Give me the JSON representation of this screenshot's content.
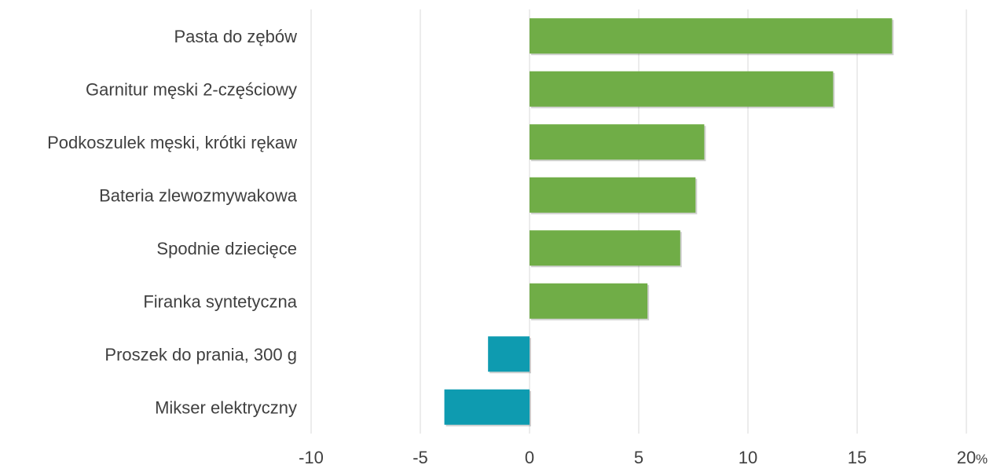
{
  "chart_data": {
    "type": "bar",
    "orientation": "horizontal",
    "categories": [
      "Pasta do zębów",
      "Garnitur męski 2-częściowy",
      "Podkoszulek męski, krótki rękaw",
      "Bateria zlewozmywakowa",
      "Spodnie dziecięce",
      "Firanka syntetyczna",
      "Proszek do prania, 300 g",
      "Mikser elektryczny"
    ],
    "values": [
      16.6,
      13.9,
      8.0,
      7.6,
      6.9,
      5.4,
      -1.9,
      -3.9
    ],
    "xlim": [
      -10,
      20
    ],
    "xticks": [
      "-10",
      "-5",
      "0",
      "5",
      "10",
      "15",
      "20"
    ],
    "unit": "%",
    "grid": true,
    "colors": {
      "positive": "#70ad47",
      "negative": "#0e9bb0",
      "grid": "#d9d9d9",
      "text": "#404040"
    }
  }
}
